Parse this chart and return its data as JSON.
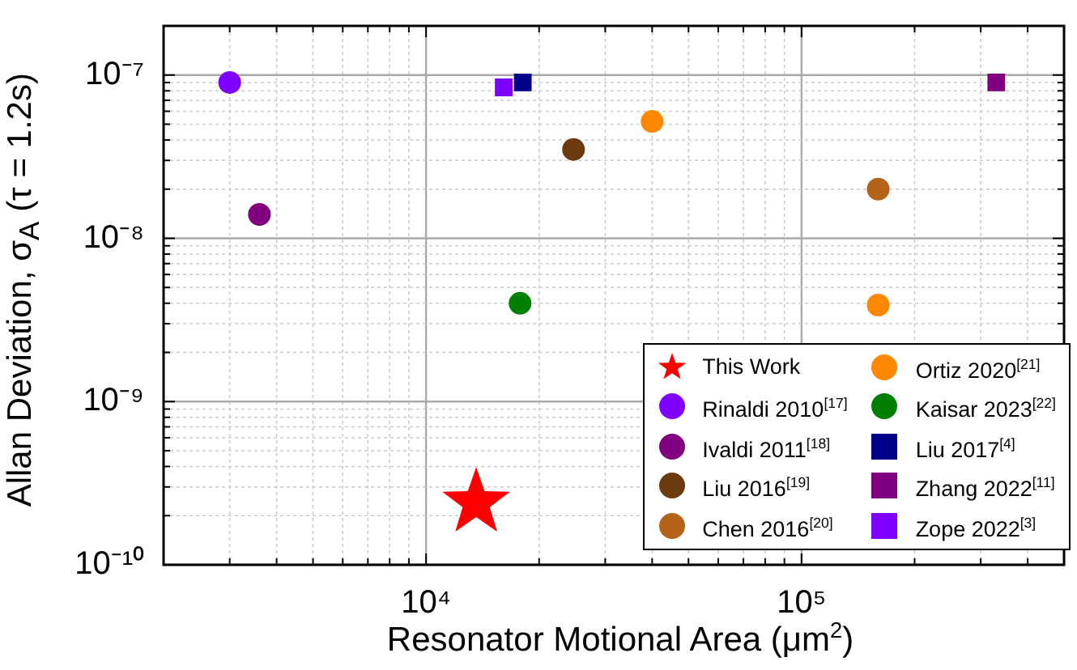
{
  "chart_data": {
    "type": "scatter",
    "xlabel": "Resonator Motional Area (μm$^{2}$)",
    "ylabel": "Allan Deviation, σ$_{A}$ (τ = 1.2s)",
    "log": "xy",
    "grid": true,
    "legend": "bottom right",
    "xlim": [
      2000,
      500000
    ],
    "ylim": [
      1e-10,
      2e-07
    ],
    "xticks": [
      {
        "value": 2000,
        "label": null
      },
      {
        "value": 3000,
        "label": null
      },
      {
        "value": 4000,
        "label": null
      },
      {
        "value": 5000,
        "label": null
      },
      {
        "value": 6000,
        "label": null
      },
      {
        "value": 7000,
        "label": null
      },
      {
        "value": 8000,
        "label": null
      },
      {
        "value": 9000,
        "label": null
      },
      {
        "value": 10000,
        "label": "10⁴"
      },
      {
        "value": 20000,
        "label": null
      },
      {
        "value": 30000,
        "label": null
      },
      {
        "value": 40000,
        "label": null
      },
      {
        "value": 50000,
        "label": null
      },
      {
        "value": 60000,
        "label": null
      },
      {
        "value": 70000,
        "label": null
      },
      {
        "value": 80000,
        "label": null
      },
      {
        "value": 90000,
        "label": null
      },
      {
        "value": 100000,
        "label": "10⁵"
      },
      {
        "value": 200000,
        "label": null
      },
      {
        "value": 300000,
        "label": null
      },
      {
        "value": 400000,
        "label": null
      },
      {
        "value": 500000,
        "label": null
      }
    ],
    "yticks": [
      {
        "value": 1e-10,
        "label": "10⁻¹⁰"
      },
      {
        "value": 2e-10,
        "label": null
      },
      {
        "value": 3e-10,
        "label": null
      },
      {
        "value": 4e-10,
        "label": null
      },
      {
        "value": 5e-10,
        "label": null
      },
      {
        "value": 6e-10,
        "label": null
      },
      {
        "value": 7e-10,
        "label": null
      },
      {
        "value": 8e-10,
        "label": null
      },
      {
        "value": 9e-10,
        "label": null
      },
      {
        "value": 1e-09,
        "label": "10⁻⁹"
      },
      {
        "value": 2e-09,
        "label": null
      },
      {
        "value": 3e-09,
        "label": null
      },
      {
        "value": 4e-09,
        "label": null
      },
      {
        "value": 5e-09,
        "label": null
      },
      {
        "value": 6e-09,
        "label": null
      },
      {
        "value": 7e-09,
        "label": null
      },
      {
        "value": 8e-09,
        "label": null
      },
      {
        "value": 9e-09,
        "label": null
      },
      {
        "value": 1e-08,
        "label": "10⁻⁸"
      },
      {
        "value": 2e-08,
        "label": null
      },
      {
        "value": 3e-08,
        "label": null
      },
      {
        "value": 4e-08,
        "label": null
      },
      {
        "value": 5e-08,
        "label": null
      },
      {
        "value": 6e-08,
        "label": null
      },
      {
        "value": 7e-08,
        "label": null
      },
      {
        "value": 8e-08,
        "label": null
      },
      {
        "value": 9e-08,
        "label": null
      },
      {
        "value": 1e-07,
        "label": "10⁻⁷"
      },
      {
        "value": 2e-07,
        "label": null
      }
    ],
    "series": [
      {
        "name": "This Work",
        "color": "#ff0000",
        "marker": "star",
        "x": [
          13600
        ],
        "values": [
          2.4e-10
        ]
      },
      {
        "name": "Rinaldi 2010$^{[17]}$",
        "color": "#8000ff",
        "marker": "circle",
        "x": [
          3000
        ],
        "values": [
          9e-08
        ]
      },
      {
        "name": "Ivaldi 2011$^{[18]}$",
        "color": "#800080",
        "marker": "circle",
        "x": [
          3600
        ],
        "values": [
          1.4e-08
        ]
      },
      {
        "name": "Liu 2016$^{[19]}$",
        "color": "#6b3a0f",
        "marker": "circle",
        "x": [
          24700
        ],
        "values": [
          3.5e-08
        ]
      },
      {
        "name": "Chen 2016$^{[20]}$",
        "color": "#b5621b",
        "marker": "circle",
        "x": [
          160000
        ],
        "values": [
          2e-08
        ]
      },
      {
        "name": "Ortiz 2020$^{[21]}$",
        "color": "#ff8800",
        "marker": "circle",
        "x": [
          40000,
          160000
        ],
        "values": [
          5.2e-08,
          3.9e-09
        ]
      },
      {
        "name": "Kaisar 2023$^{[22]}$",
        "color": "#008000",
        "marker": "circle",
        "x": [
          17800
        ],
        "values": [
          4e-09
        ]
      },
      {
        "name": "Liu 2017$^{[4]}$",
        "color": "#00008b",
        "marker": "square",
        "x": [
          18100
        ],
        "values": [
          9e-08
        ]
      },
      {
        "name": "Zhang 2022$^{[11]}$",
        "color": "#800080",
        "marker": "square",
        "x": [
          330000
        ],
        "values": [
          9e-08
        ]
      },
      {
        "name": "Zope 2022$^{[3]}$",
        "color": "#8000ff",
        "marker": "square",
        "x": [
          16100
        ],
        "values": [
          8.4e-08
        ]
      }
    ]
  }
}
